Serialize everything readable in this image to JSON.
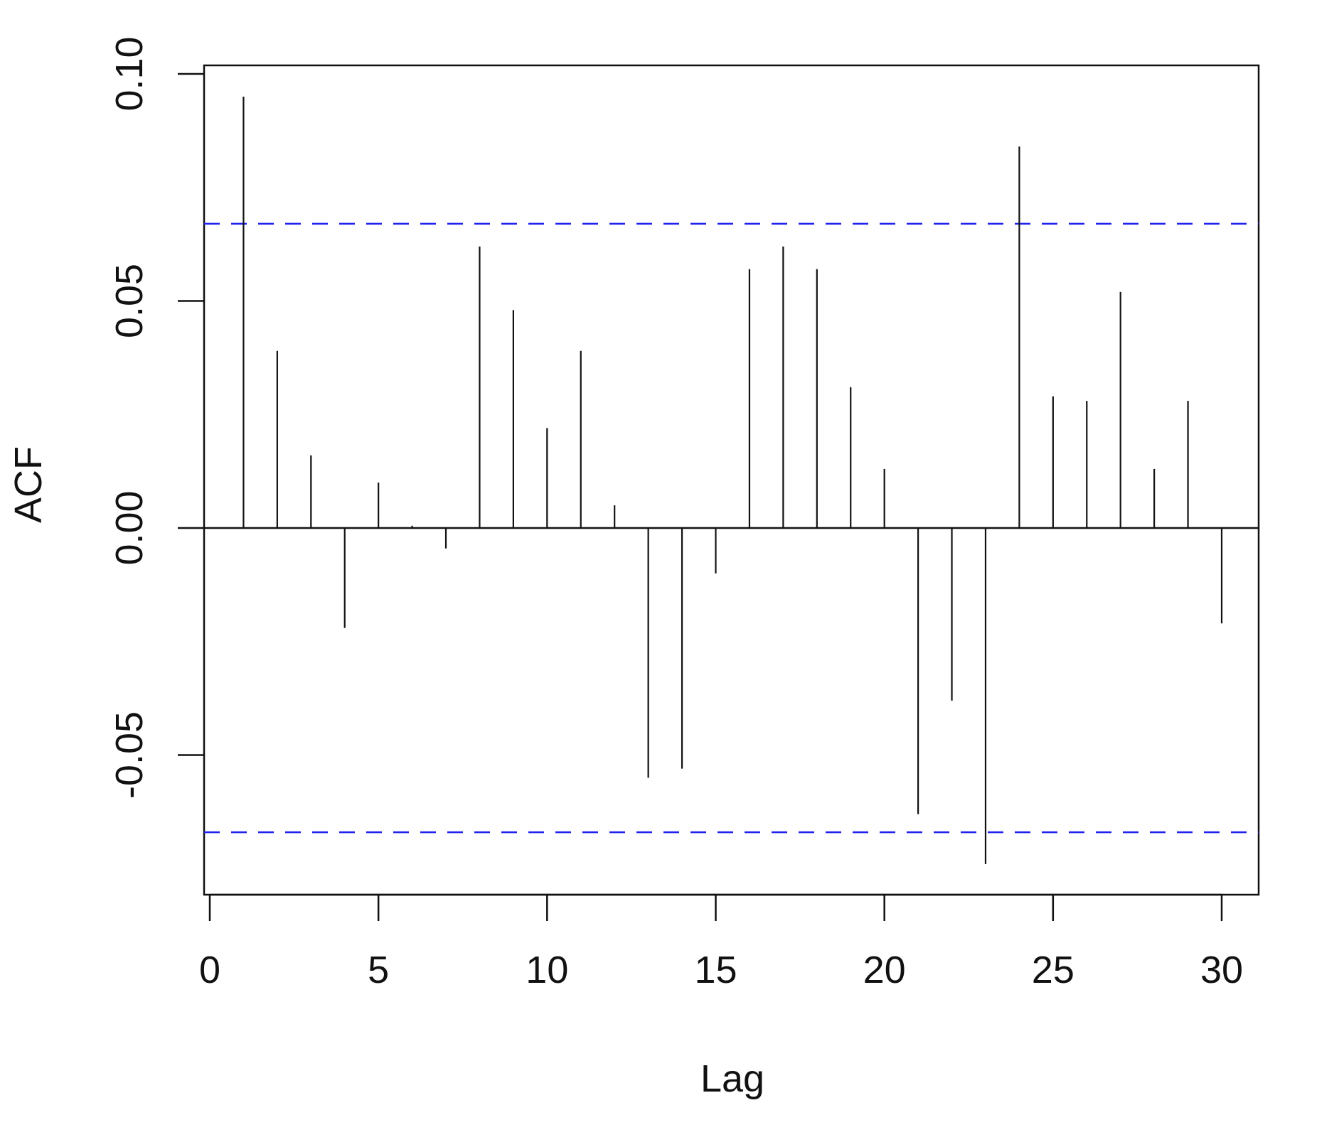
{
  "chart_data": {
    "type": "bar",
    "style": "acf-spikes",
    "title": "",
    "xlabel": "Lag",
    "ylabel": "ACF",
    "x": [
      1,
      2,
      3,
      4,
      5,
      6,
      7,
      8,
      9,
      10,
      11,
      12,
      13,
      14,
      15,
      16,
      17,
      18,
      19,
      20,
      21,
      22,
      23,
      24,
      25,
      26,
      27,
      28,
      29,
      30
    ],
    "values": [
      0.095,
      0.039,
      0.016,
      -0.022,
      0.01,
      0.0005,
      -0.0045,
      0.062,
      0.048,
      0.022,
      0.039,
      0.005,
      -0.055,
      -0.053,
      -0.01,
      0.057,
      0.062,
      0.057,
      0.031,
      0.013,
      -0.063,
      -0.038,
      -0.074,
      0.084,
      0.029,
      0.028,
      0.052,
      0.013,
      0.028,
      -0.021
    ],
    "confidence_bounds": [
      0.067,
      -0.067
    ],
    "confidence_line_color": "#2222ee",
    "xlim": [
      0,
      31
    ],
    "ylim": [
      -0.08,
      0.1
    ],
    "x_ticks": [
      0,
      5,
      10,
      15,
      20,
      25,
      30
    ],
    "x_tick_labels": [
      "0",
      "5",
      "10",
      "15",
      "20",
      "25",
      "30"
    ],
    "y_ticks": [
      -0.05,
      0.0,
      0.05,
      0.1
    ],
    "y_tick_labels": [
      "-0.05",
      "0.00",
      "0.05",
      "0.10"
    ],
    "grid": false,
    "legend": "none"
  }
}
